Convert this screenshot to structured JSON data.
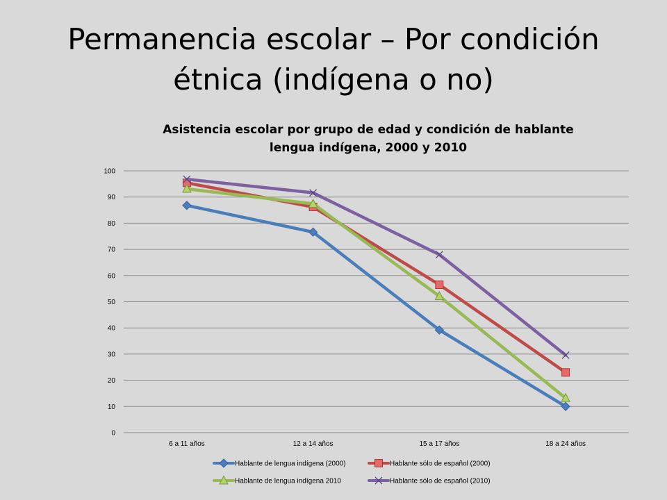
{
  "slide": {
    "title_line1": "Permanencia escolar – Por condición",
    "title_line2": "étnica (indígena o no)"
  },
  "chart_data": {
    "type": "line",
    "title_line1": "Asistencia escolar por grupo de edad y condición de hablante",
    "title_line2": "lengua indígena, 2000 y 2010",
    "xlabel": "",
    "ylabel": "",
    "categories": [
      "6 a 11 años",
      "12 a 14 años",
      "15 a 17 años",
      "18 a 24 años"
    ],
    "ylim": [
      0,
      100
    ],
    "yticks": [
      0,
      10,
      20,
      30,
      40,
      50,
      60,
      70,
      80,
      90,
      100
    ],
    "grid": true,
    "legend_position": "bottom",
    "series": [
      {
        "name": "Hablante de lengua indígena (2000)",
        "values": [
          86.8,
          76.6,
          39.2,
          10.0
        ],
        "color": "#4a7ebb",
        "marker": "diamond"
      },
      {
        "name": "Hablante sólo de español (2000)",
        "values": [
          95.4,
          86.2,
          56.5,
          23.0
        ],
        "color": "#be4b48",
        "marker": "square"
      },
      {
        "name": "Hablante de lengua indígena 2010",
        "values": [
          93.1,
          87.4,
          52.1,
          13.2
        ],
        "color": "#98b954",
        "marker": "triangle"
      },
      {
        "name": "Hablante sólo de español (2010)",
        "values": [
          96.8,
          91.6,
          68.0,
          29.6
        ],
        "color": "#7d60a0",
        "marker": "x"
      }
    ]
  }
}
